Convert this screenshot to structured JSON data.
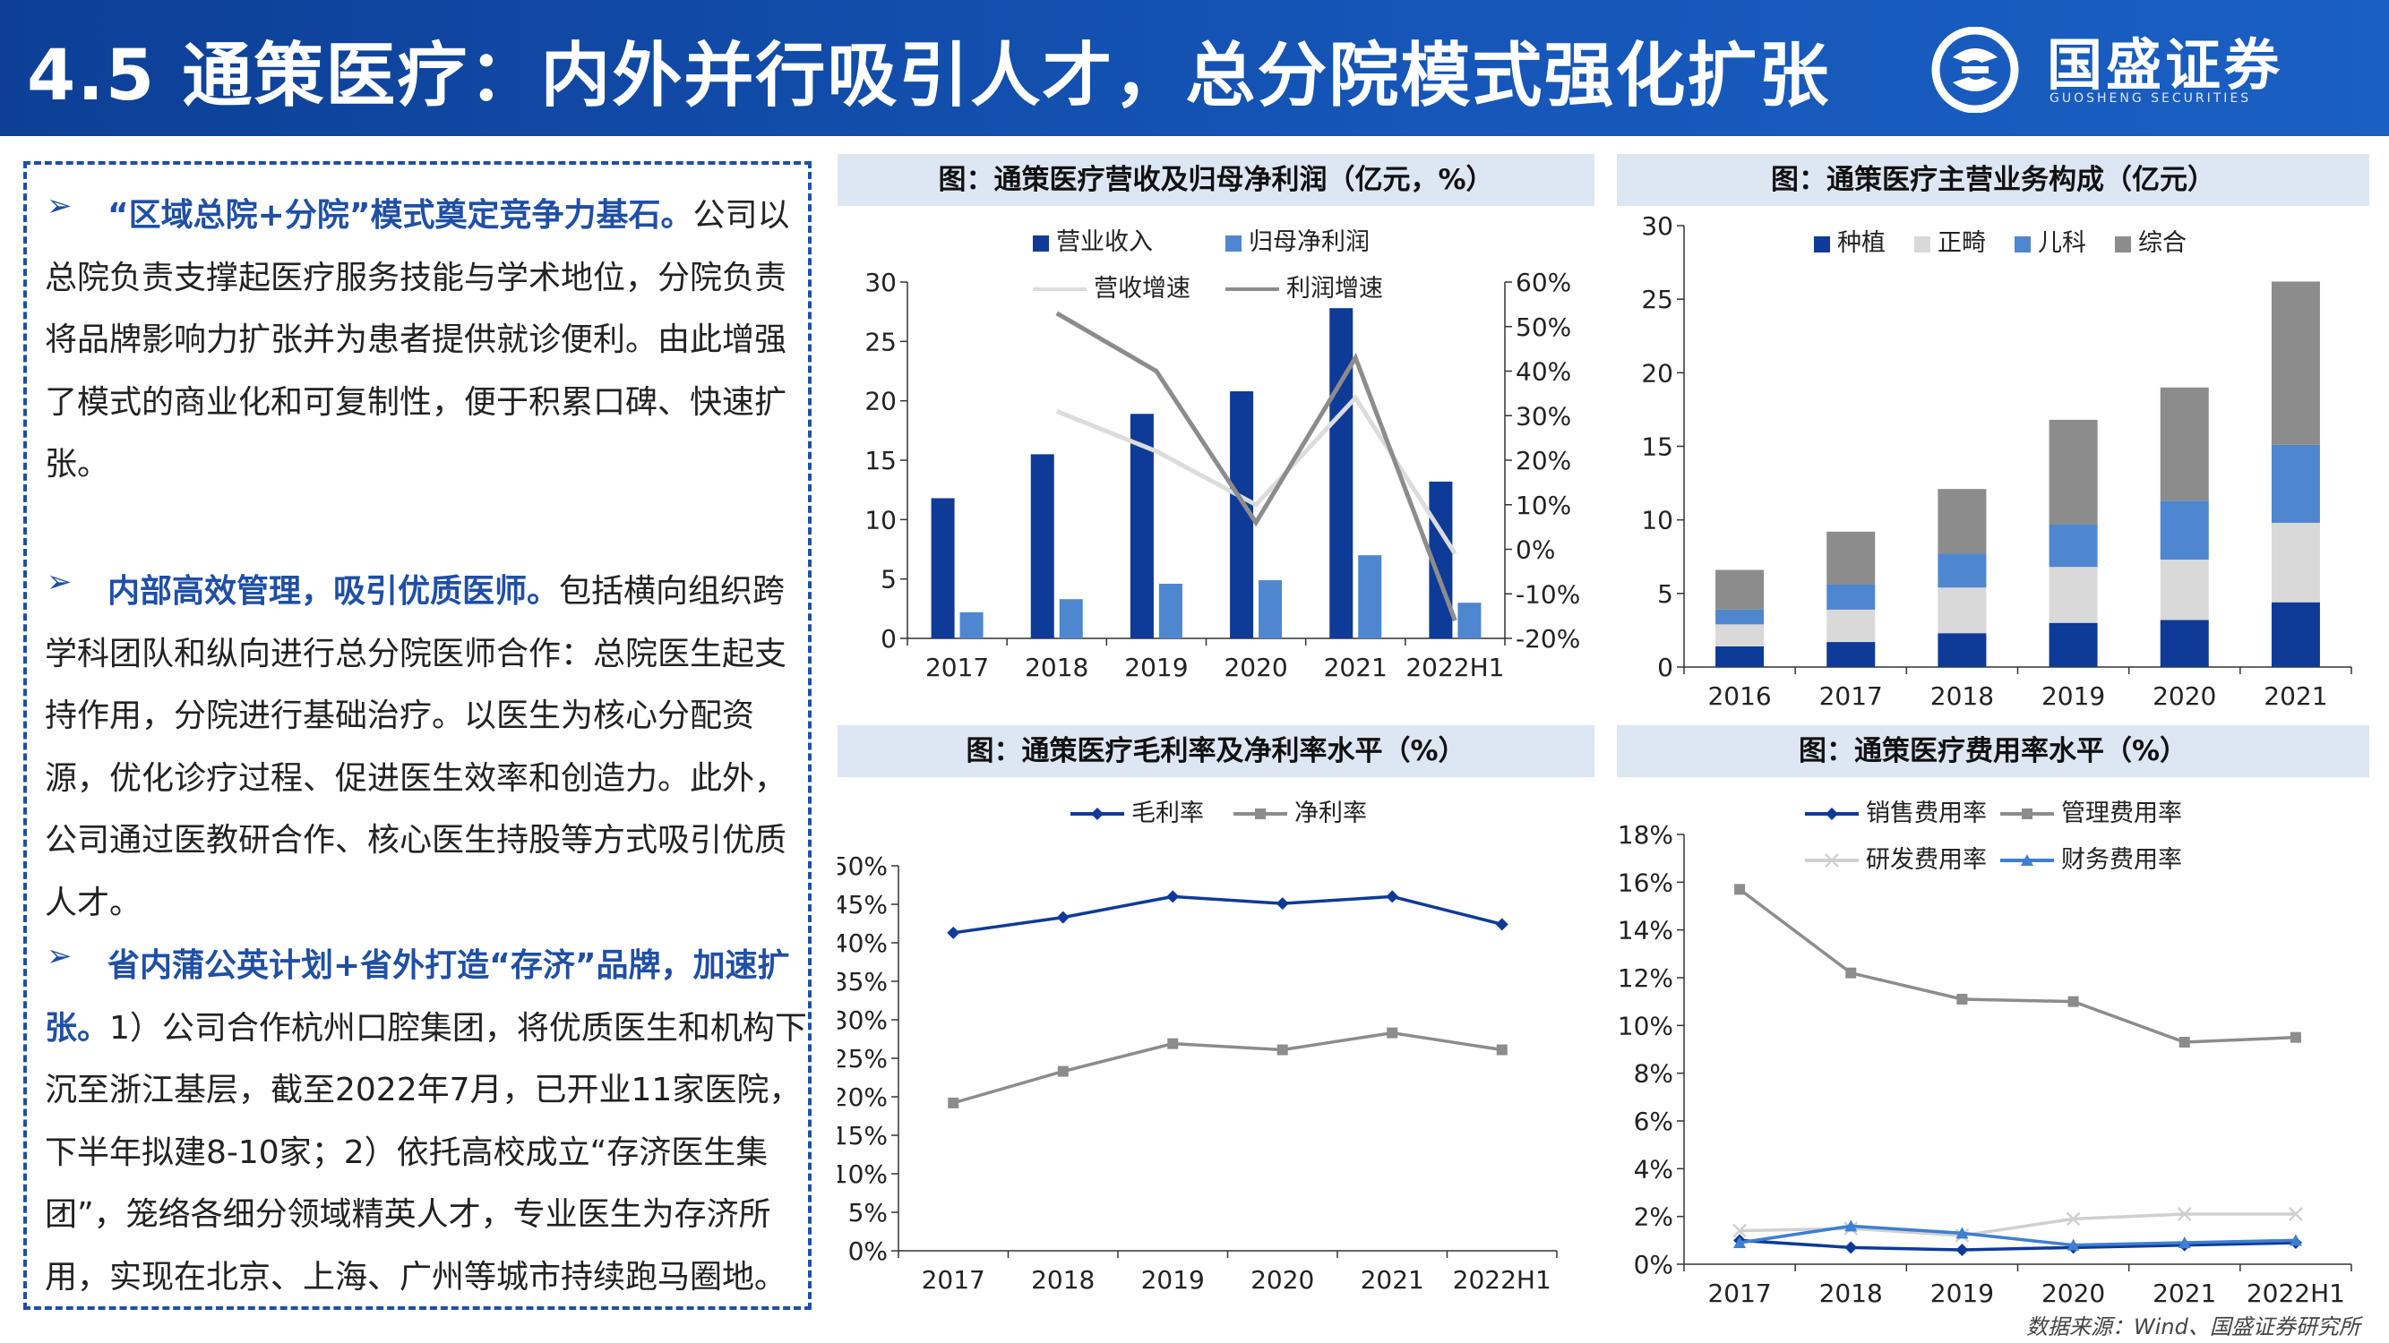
{
  "header": {
    "title": "4.5 通策医疗：内外并行吸引人才，总分院模式强化扩张",
    "logo_name": "国盛证券",
    "logo_sub": "GUOSHENG SECURITIES"
  },
  "text": {
    "p1_lead": "“区域总院+分院”模式奠定竞争力基石。",
    "p1_body": "公司以总院负责支撑起医疗服务技能与学术地位，分院负责将品牌影响力扩张并为患者提供就诊便利。由此增强了模式的商业化和可复制性，便于积累口碑、快速扩张。",
    "p2_lead": "内部高效管理，吸引优质医师。",
    "p2_body": "包括横向组织跨学科团队和纵向进行总分院医师合作：总院医生起支持作用，分院进行基础治疗。以医生为核心分配资源，优化诊疗过程、促进医生效率和创造力。此外，公司通过医教研合作、核心医生持股等方式吸引优质人才。",
    "p3_lead": "省内蒲公英计划+省外打造“存济”品牌，加速扩张。",
    "p3_body": "1）公司合作杭州口腔集团，将优质医生和机构下沉至浙江基层，截至2022年7月，已开业11家医院，下半年拟建8-10家；2）依托高校成立“存济医生集团”，笼络各细分领域精英人才，专业医生为存济所用，实现在北京、上海、广州等城市持续跑马圈地。"
  },
  "source": "数据来源：Wind、国盛证券研究所",
  "chart_data": [
    {
      "type": "bar",
      "title": "图：通策医疗营收及归母净利润（亿元，%）",
      "categories": [
        "2017",
        "2018",
        "2019",
        "2020",
        "2021",
        "2022H1"
      ],
      "series": [
        {
          "name": "营业收入",
          "kind": "bar",
          "axis": "left",
          "color": "#0e3a98",
          "values": [
            11.8,
            15.5,
            18.9,
            20.8,
            27.8,
            13.2
          ]
        },
        {
          "name": "归母净利润",
          "kind": "bar",
          "axis": "left",
          "color": "#4f86d0",
          "values": [
            2.2,
            3.3,
            4.6,
            4.9,
            7.0,
            3.0
          ]
        },
        {
          "name": "营收增速",
          "kind": "line",
          "axis": "right",
          "color": "#dcdcdc",
          "values": [
            null,
            31,
            22,
            10,
            34,
            -1
          ]
        },
        {
          "name": "利润增速",
          "kind": "line",
          "axis": "right",
          "color": "#8c8c8c",
          "values": [
            null,
            53,
            40,
            6,
            43,
            -16
          ]
        }
      ],
      "ylim": [
        0,
        30
      ],
      "yticks": [
        "0",
        "5",
        "10",
        "15",
        "20",
        "25",
        "30"
      ],
      "y2lim": [
        -20,
        60
      ],
      "y2ticks": [
        "-20%",
        "-10%",
        "0%",
        "10%",
        "20%",
        "30%",
        "40%",
        "50%",
        "60%"
      ],
      "legend": "top"
    },
    {
      "type": "bar",
      "title": "图：通策医疗主营业务构成（亿元）",
      "stacked": true,
      "categories": [
        "2016",
        "2017",
        "2018",
        "2019",
        "2020",
        "2021"
      ],
      "series": [
        {
          "name": "种植",
          "color": "#0e3a98",
          "values": [
            1.4,
            1.7,
            2.3,
            3.0,
            3.2,
            4.4
          ]
        },
        {
          "name": "正畸",
          "color": "#d9d9d9",
          "values": [
            1.5,
            2.2,
            3.1,
            3.8,
            4.1,
            5.4
          ]
        },
        {
          "name": "儿科",
          "color": "#4f86d0",
          "values": [
            1.0,
            1.7,
            2.3,
            2.9,
            4.0,
            5.3
          ]
        },
        {
          "name": "综合",
          "color": "#8c8c8c",
          "values": [
            2.7,
            3.6,
            4.4,
            7.1,
            7.7,
            11.1
          ]
        }
      ],
      "ylim": [
        0,
        30
      ],
      "yticks": [
        "0",
        "5",
        "10",
        "15",
        "20",
        "25",
        "30"
      ],
      "legend": "top"
    },
    {
      "type": "line",
      "title": "图：通策医疗毛利率及净利率水平（%）",
      "categories": [
        "2017",
        "2018",
        "2019",
        "2020",
        "2021",
        "2022H1"
      ],
      "series": [
        {
          "name": "毛利率",
          "color": "#0e3a98",
          "marker": "diamond",
          "values": [
            41.3,
            43.3,
            46.0,
            45.1,
            46.0,
            42.4
          ]
        },
        {
          "name": "净利率",
          "color": "#8c8c8c",
          "marker": "square",
          "values": [
            19.2,
            23.3,
            26.9,
            26.1,
            28.3,
            26.1
          ]
        }
      ],
      "ylim": [
        0,
        50
      ],
      "yticks": [
        "0%",
        "5%",
        "10%",
        "15%",
        "20%",
        "25%",
        "30%",
        "35%",
        "40%",
        "45%",
        "50%"
      ],
      "legend": "top"
    },
    {
      "type": "line",
      "title": "图：通策医疗费用率水平（%）",
      "categories": [
        "2017",
        "2018",
        "2019",
        "2020",
        "2021",
        "2022H1"
      ],
      "series": [
        {
          "name": "销售费用率",
          "color": "#0e3a98",
          "marker": "diamond",
          "values": [
            1.0,
            0.7,
            0.6,
            0.7,
            0.8,
            0.9
          ]
        },
        {
          "name": "管理费用率",
          "color": "#8c8c8c",
          "marker": "square",
          "values": [
            15.7,
            12.2,
            11.1,
            11.0,
            9.3,
            9.5
          ]
        },
        {
          "name": "研发费用率",
          "color": "#d0d0d0",
          "marker": "x",
          "values": [
            1.4,
            1.5,
            1.2,
            1.9,
            2.1,
            2.1
          ]
        },
        {
          "name": "财务费用率",
          "color": "#3d7fd1",
          "marker": "triangle",
          "values": [
            0.9,
            1.6,
            1.3,
            0.8,
            0.9,
            1.0
          ]
        }
      ],
      "ylim": [
        0,
        18
      ],
      "yticks": [
        "0%",
        "2%",
        "4%",
        "6%",
        "8%",
        "10%",
        "12%",
        "14%",
        "16%",
        "18%"
      ],
      "legend": "top"
    }
  ]
}
